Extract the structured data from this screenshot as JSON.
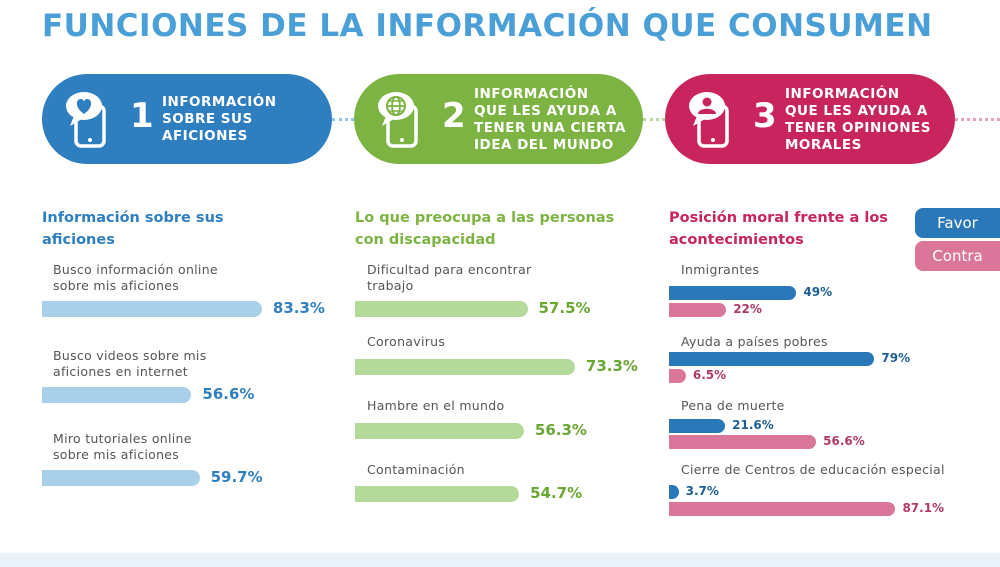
{
  "title": "FUNCIONES DE LA INFORMACIÓN QUE CONSUMEN",
  "pills": [
    {
      "number": "1",
      "lines": [
        "INFORMACIÓN",
        "SOBRE SUS",
        "AFICIONES"
      ],
      "color": "#2f7fc0",
      "icon": "phone-heart-icon"
    },
    {
      "number": "2",
      "lines": [
        "INFORMACIÓN",
        "QUE LES AYUDA A",
        "TENER UNA CIERTA",
        "IDEA DEL MUNDO"
      ],
      "color": "#7cb342",
      "icon": "phone-globe-icon"
    },
    {
      "number": "3",
      "lines": [
        "INFORMACIÓN",
        "QUE LES AYUDA A",
        "TENER OPINIONES",
        "MORALES"
      ],
      "color": "#c8245e",
      "icon": "phone-user-icon"
    }
  ],
  "legend": {
    "favor": "Favor",
    "contra": "Contra",
    "favor_color": "#2a78b8",
    "contra_color": "#d9769a"
  },
  "chart_data": [
    {
      "type": "bar",
      "title_lines": [
        "Información sobre sus",
        "aficiones"
      ],
      "title_color": "#2f7fc0",
      "bar_color": "#a9d0e9",
      "value_color": "#2f7fc0",
      "categories": [
        [
          "Busco información online",
          "sobre mis aficiones"
        ],
        [
          "Busco videos sobre mis",
          "aficiones en internet"
        ],
        [
          "Miro tutoriales online",
          "sobre mis aficiones"
        ]
      ],
      "values": [
        83.3,
        56.6,
        59.7
      ],
      "labels": [
        "83.3%",
        "56.6%",
        "59.7%"
      ],
      "unit": "%"
    },
    {
      "type": "bar",
      "title_lines": [
        "Lo que preocupa a las personas",
        "con discapacidad"
      ],
      "title_color": "#7cb342",
      "bar_color": "#b5d99a",
      "value_color": "#6aa632",
      "categories": [
        [
          "Dificultad para encontrar",
          "trabajo"
        ],
        [
          "Coronavirus"
        ],
        [
          "Hambre en el mundo"
        ],
        [
          "Contaminación"
        ]
      ],
      "values": [
        57.5,
        73.3,
        56.3,
        54.7
      ],
      "labels": [
        "57.5%",
        "73.3%",
        "56.3%",
        "54.7%"
      ],
      "unit": "%"
    },
    {
      "type": "bar",
      "title_lines": [
        "Posición moral frente a los",
        "acontecimientos"
      ],
      "title_color": "#c8245e",
      "categories": [
        [
          "Inmigrantes"
        ],
        [
          "Ayuda a países pobres"
        ],
        [
          "Pena de muerte"
        ],
        [
          "Cierre de Centros de educación especial"
        ]
      ],
      "series": [
        {
          "name": "Favor",
          "values": [
            49,
            79,
            21.6,
            3.7
          ],
          "labels": [
            "49%",
            "79%",
            "21.6%",
            "3.7%"
          ],
          "color": "#2a78b8"
        },
        {
          "name": "Contra",
          "values": [
            22,
            6.5,
            56.6,
            87.1
          ],
          "labels": [
            "22%",
            "6.5%",
            "56.6%",
            "87.1%"
          ],
          "color": "#d9769a"
        }
      ],
      "unit": "%"
    }
  ]
}
